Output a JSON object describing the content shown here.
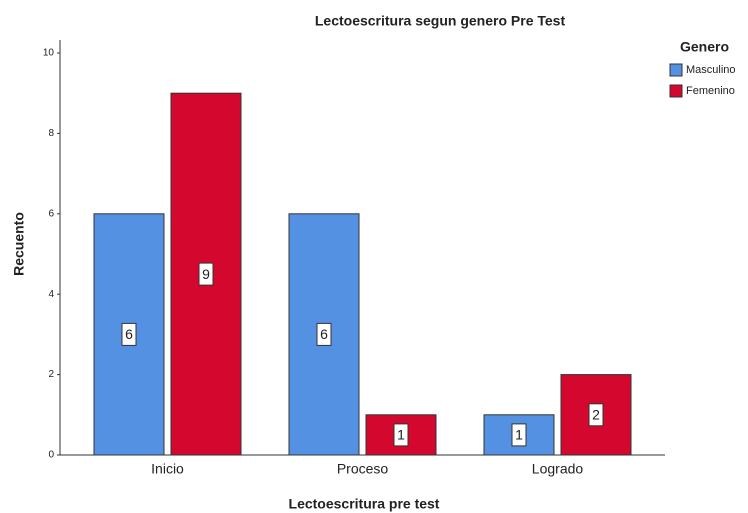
{
  "chart_data": {
    "type": "bar",
    "title": "Lectoescritura segun genero Pre Test",
    "x_label": "Lectoescritura pre test",
    "y_label": "Recuento",
    "legend_title": "Genero",
    "legend_position": "right",
    "categories": [
      "Inicio",
      "Proceso",
      "Logrado"
    ],
    "series": [
      {
        "name": "Masculino",
        "color": "#5591e2",
        "values": [
          6,
          6,
          1
        ]
      },
      {
        "name": "Femenino",
        "color": "#d4072e",
        "values": [
          9,
          1,
          2
        ]
      }
    ],
    "ylim": [
      0,
      10
    ],
    "yticks": [
      0,
      2,
      4,
      6,
      8,
      10
    ],
    "grid": false
  }
}
